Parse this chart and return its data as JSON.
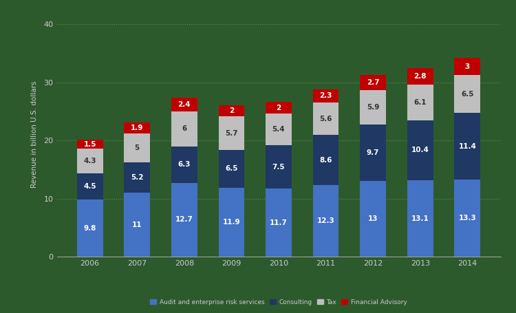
{
  "years": [
    "2006",
    "2007",
    "2008",
    "2009",
    "2010",
    "2011",
    "2012",
    "2013",
    "2014"
  ],
  "audit": [
    9.8,
    11,
    12.7,
    11.9,
    11.7,
    12.3,
    13,
    13.1,
    13.3
  ],
  "consulting": [
    4.5,
    5.2,
    6.3,
    6.5,
    7.5,
    8.6,
    9.7,
    10.4,
    11.4
  ],
  "tax": [
    4.3,
    5,
    6,
    5.7,
    5.4,
    5.6,
    5.9,
    6.1,
    6.5
  ],
  "financial_advisory": [
    1.5,
    1.9,
    2.4,
    2,
    2,
    2.3,
    2.7,
    2.8,
    3
  ],
  "audit_color": "#4472C4",
  "consulting_color": "#1F3864",
  "tax_color": "#BFBFBF",
  "financial_advisory_color": "#C00000",
  "ylabel": "Revenue in billion U.S. dollars",
  "yticks": [
    0,
    10,
    20,
    30,
    40
  ],
  "background_color": "#2d5a2d",
  "grid_color": "#5a8a5a",
  "text_color": "#cccccc",
  "legend_labels": [
    "Audit and enterprise risk services",
    "Consulting",
    "Tax",
    "Financial Advisory"
  ],
  "bar_width": 0.55,
  "ylim": [
    0,
    42
  ],
  "label_fontsize": 7.5
}
